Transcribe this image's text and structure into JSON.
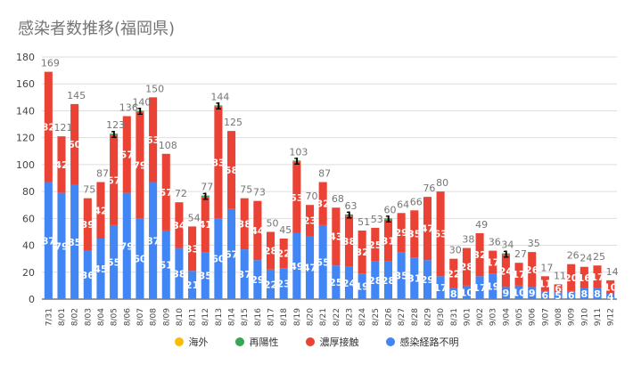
{
  "chart_data": {
    "type": "bar",
    "stacked": true,
    "title": "感染者数推移(福岡県)",
    "xlabel": "",
    "ylabel": "",
    "ylim": [
      0,
      180
    ],
    "yticks": [
      0,
      20,
      40,
      60,
      80,
      100,
      120,
      140,
      160,
      180
    ],
    "grid": true,
    "legend_position": "bottom",
    "categories": [
      "7/31",
      "8/01",
      "8/02",
      "8/03",
      "8/04",
      "8/05",
      "8/06",
      "8/07",
      "8/08",
      "8/09",
      "8/10",
      "8/11",
      "8/12",
      "8/13",
      "8/14",
      "8/15",
      "8/16",
      "8/17",
      "8/18",
      "8/19",
      "8/20",
      "8/21",
      "8/22",
      "8/23",
      "8/24",
      "8/25",
      "8/26",
      "8/27",
      "8/28",
      "8/29",
      "8/30",
      "8/31",
      "9/01",
      "9/02",
      "9/03",
      "9/04",
      "9/05",
      "9/06",
      "9/07",
      "9/08",
      "9/09",
      "9/10",
      "9/11",
      "9/12"
    ],
    "series": [
      {
        "name": "感染経路不明",
        "color": "#4285f4",
        "label_color": "#ffffff",
        "values": [
          87,
          79,
          85,
          36,
          45,
          55,
          79,
          60,
          87,
          51,
          38,
          21,
          35,
          60,
          67,
          37,
          29,
          22,
          23,
          49,
          47,
          55,
          25,
          24,
          19,
          28,
          28,
          35,
          31,
          29,
          17,
          8,
          10,
          17,
          19,
          9,
          10,
          9,
          6,
          5,
          6,
          8,
          8,
          4
        ]
      },
      {
        "name": "濃厚接触",
        "color": "#ea4335",
        "label_color": "#ffffff",
        "values": [
          82,
          42,
          60,
          39,
          42,
          67,
          57,
          79,
          63,
          57,
          34,
          33,
          41,
          83,
          58,
          38,
          44,
          28,
          22,
          53,
          23,
          32,
          43,
          38,
          32,
          25,
          31,
          29,
          35,
          47,
          63,
          22,
          28,
          32,
          17,
          24,
          17,
          26,
          11,
          6,
          20,
          16,
          17,
          10
        ]
      },
      {
        "name": "再陽性",
        "color": "#34a853",
        "label_color": "#000000",
        "values": [
          0,
          0,
          0,
          0,
          0,
          1,
          0,
          1,
          0,
          0,
          0,
          0,
          1,
          1,
          0,
          0,
          0,
          0,
          0,
          1,
          0,
          0,
          0,
          1,
          0,
          0,
          1,
          0,
          0,
          0,
          0,
          0,
          0,
          0,
          0,
          1,
          0,
          0,
          0,
          0,
          0,
          0,
          0,
          0
        ]
      },
      {
        "name": "海外",
        "color": "#fbbc04",
        "label_color": "#000000",
        "values": [
          0,
          0,
          0,
          0,
          0,
          0,
          0,
          0,
          0,
          0,
          0,
          0,
          0,
          0,
          0,
          0,
          0,
          0,
          0,
          0,
          0,
          0,
          0,
          0,
          0,
          0,
          0,
          0,
          0,
          0,
          0,
          0,
          0,
          0,
          0,
          0,
          0,
          0,
          0,
          0,
          0,
          0,
          0,
          0
        ]
      }
    ],
    "totals": [
      169,
      121,
      145,
      75,
      87,
      123,
      136,
      140,
      150,
      108,
      72,
      54,
      77,
      144,
      125,
      75,
      73,
      50,
      45,
      103,
      70,
      87,
      68,
      63,
      51,
      53,
      60,
      64,
      66,
      76,
      80,
      30,
      38,
      49,
      36,
      34,
      27,
      35,
      17,
      11,
      26,
      24,
      25,
      14
    ],
    "legend": [
      {
        "name": "海外",
        "color": "#fbbc04"
      },
      {
        "name": "再陽性",
        "color": "#34a853"
      },
      {
        "name": "濃厚接触",
        "color": "#ea4335"
      },
      {
        "name": "感染経路不明",
        "color": "#4285f4"
      }
    ]
  }
}
